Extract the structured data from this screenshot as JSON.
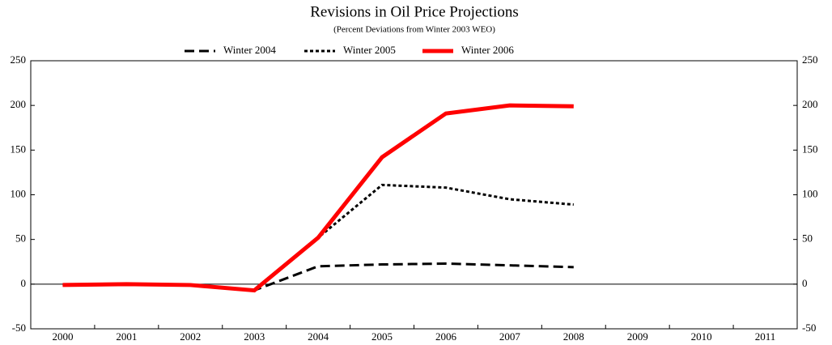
{
  "chart_data": {
    "type": "line",
    "title": "Revisions in Oil Price Projections",
    "subtitle": "(Percent Deviations from Winter 2003 WEO)",
    "categories": [
      "2000",
      "2001",
      "2002",
      "2003",
      "2004",
      "2005",
      "2006",
      "2007",
      "2008",
      "2009",
      "2010",
      "2011"
    ],
    "series": [
      {
        "name": "Winter 2004",
        "color": "#000000",
        "dash": "dashed",
        "values": [
          -1,
          0,
          -1,
          -7,
          20,
          22,
          23,
          21,
          19,
          null,
          null,
          null
        ]
      },
      {
        "name": "Winter 2005",
        "color": "#000000",
        "dash": "dotted",
        "values": [
          -1,
          0,
          -1,
          -7,
          52,
          111,
          108,
          95,
          89,
          null,
          null,
          null
        ]
      },
      {
        "name": "Winter 2006",
        "color": "#ff0000",
        "dash": "solid",
        "values": [
          -1,
          0,
          -1,
          -7,
          52,
          142,
          191,
          200,
          199,
          null,
          null,
          null
        ]
      }
    ],
    "ylim": [
      -50,
      250
    ],
    "yticks": [
      -50,
      0,
      50,
      100,
      150,
      200,
      250
    ],
    "y2lim": [
      -50,
      250
    ],
    "y2ticks": [
      -50,
      0,
      50,
      100,
      150,
      200,
      250
    ],
    "legend": "top"
  }
}
